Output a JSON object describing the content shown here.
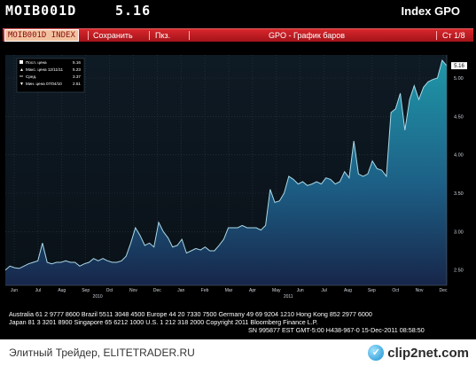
{
  "header": {
    "ticker": "MOIB001D",
    "value": "5.16",
    "index_label": "Index GPO"
  },
  "toolbar": {
    "security": "MOIB001D INDEX",
    "save": "Сохранить",
    "display": "Пкз.",
    "title": "GPO - График баров",
    "page": "Ст 1/8"
  },
  "legend": [
    {
      "label": "Посл. цена",
      "value": "5.16",
      "icon": "square-marker"
    },
    {
      "label": "Макс. цена 12/11/11",
      "value": "5.23",
      "icon": "up-arrow"
    },
    {
      "label": "Сред.",
      "value": "3.37",
      "icon": "line-marker"
    },
    {
      "label": "Мин. цена 07/04/10",
      "value": "2.51",
      "icon": "down-arrow"
    }
  ],
  "chart_data": {
    "type": "area",
    "x_tick_labels": [
      "Jun",
      "Jul",
      "Aug",
      "Sep",
      "Oct",
      "Nov",
      "Dec",
      "Jan",
      "Feb",
      "Mar",
      "Apr",
      "May",
      "Jun",
      "Jul",
      "Aug",
      "Sep",
      "Oct",
      "Nov",
      "Dec"
    ],
    "year_labels": [
      "2010",
      "2011"
    ],
    "y_tick_labels": [
      "2.50",
      "3.00",
      "3.50",
      "4.00",
      "4.50",
      "5.00"
    ],
    "ylim": [
      2.3,
      5.3
    ],
    "last_price_label": "5.16",
    "series": [
      {
        "values": [
          2.5,
          2.55,
          2.53,
          2.52,
          2.55,
          2.58,
          2.6,
          2.62,
          2.85,
          2.6,
          2.58,
          2.6,
          2.6,
          2.62,
          2.6,
          2.6,
          2.55,
          2.58,
          2.6,
          2.65,
          2.62,
          2.65,
          2.62,
          2.6,
          2.6,
          2.62,
          2.68,
          2.85,
          3.05,
          2.95,
          2.82,
          2.85,
          2.8,
          3.12,
          3.0,
          2.92,
          2.8,
          2.82,
          2.9,
          2.72,
          2.75,
          2.78,
          2.76,
          2.8,
          2.75,
          2.75,
          2.82,
          2.9,
          3.05,
          3.05,
          3.05,
          3.08,
          3.05,
          3.05,
          3.05,
          3.02,
          3.08,
          3.55,
          3.38,
          3.4,
          3.5,
          3.72,
          3.68,
          3.62,
          3.65,
          3.6,
          3.62,
          3.65,
          3.62,
          3.7,
          3.68,
          3.62,
          3.65,
          3.78,
          3.7,
          4.18,
          3.75,
          3.72,
          3.75,
          3.92,
          3.82,
          3.8,
          3.72,
          4.55,
          4.6,
          4.8,
          4.32,
          4.72,
          4.9,
          4.72,
          4.88,
          4.95,
          4.98,
          5.0,
          5.23,
          5.16
        ]
      }
    ]
  },
  "footer": {
    "line1": "Australia 61 2 9777 8600 Brazil 5511 3048 4500 Europe 44 20 7330 7500 Germany 49 69 9204 1210 Hong Kong 852 2977 6000",
    "line2": "Japan 81 3 3201 8900          Singapore 65 6212 1000          U.S. 1 212 318 2000          Copyright 2011 Bloomberg Finance L.P.",
    "line3": "SN 995877 EST  GMT-5:00 H438-967-0 15-Dec-2011 08:58:50"
  },
  "bottom": {
    "brand": "Элитный Трейдер, ELITETRADER.RU",
    "watermark": "clip2net.com"
  },
  "colors": {
    "background": "#000000",
    "plot_bg_top": "#0b1620",
    "area_top": "#1a8aa0",
    "area_bottom": "#16284a",
    "line": "#a9d8e6",
    "toolbar_red": "#c81e24"
  }
}
